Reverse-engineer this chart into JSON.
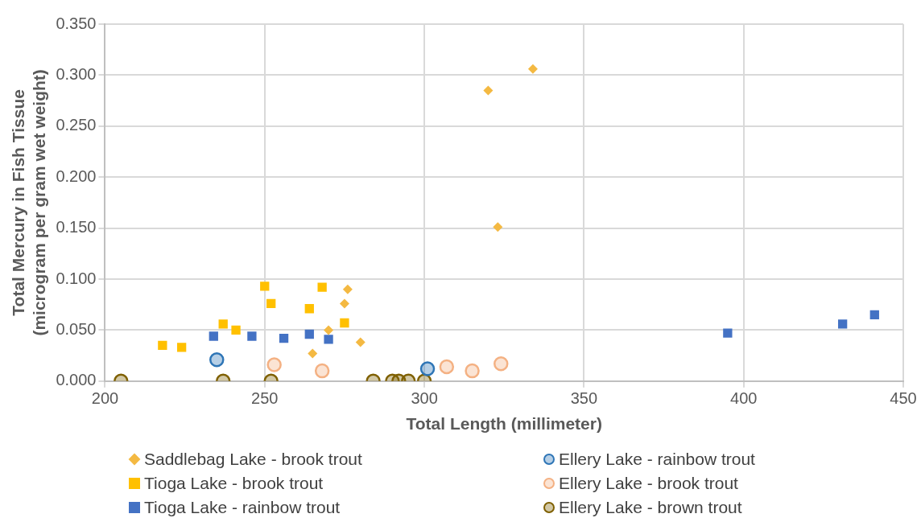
{
  "chart_data": {
    "type": "scatter",
    "xlabel": "Total Length (millimeter)",
    "ylabel": "Total Mercury in Fish Tissue\n(microgram per gram wet weight)",
    "xlim": [
      200,
      450
    ],
    "xticks": [
      200,
      250,
      300,
      350,
      400,
      450
    ],
    "ylim": [
      0,
      0.35
    ],
    "yticks": [
      {
        "value": 0,
        "label": "0.000"
      },
      {
        "value": 0.05,
        "label": "0.050"
      },
      {
        "value": 0.1,
        "label": "0.100"
      },
      {
        "value": 0.15,
        "label": "0.150"
      },
      {
        "value": 0.2,
        "label": "0.200"
      },
      {
        "value": 0.25,
        "label": "0.250"
      },
      {
        "value": 0.3,
        "label": "0.300"
      },
      {
        "value": 0.35,
        "label": "0.350"
      }
    ],
    "grid": true,
    "legend": "bottom",
    "series": [
      {
        "name": "Saddlebag Lake - brook trout",
        "color": "#f4b942",
        "marker": "diamond",
        "x": [
          320,
          334,
          323,
          276,
          275,
          270,
          265,
          280
        ],
        "values": [
          0.285,
          0.306,
          0.151,
          0.09,
          0.076,
          0.05,
          0.027,
          0.038
        ]
      },
      {
        "name": "Tioga Lake - brook trout",
        "color": "#ffc000",
        "marker": "square",
        "x": [
          218,
          224,
          237,
          241,
          250,
          252,
          264,
          268,
          275
        ],
        "values": [
          0.035,
          0.033,
          0.056,
          0.05,
          0.093,
          0.076,
          0.071,
          0.092,
          0.057
        ]
      },
      {
        "name": "Tioga Lake - rainbow trout",
        "color": "#4472c4",
        "marker": "square",
        "x": [
          234,
          246,
          256,
          264,
          270,
          395,
          431,
          441
        ],
        "values": [
          0.044,
          0.044,
          0.042,
          0.046,
          0.041,
          0.047,
          0.056,
          0.065
        ]
      },
      {
        "name": "Ellery Lake - rainbow trout",
        "color": "#2e75b6",
        "marker": "circle",
        "x": [
          235,
          301
        ],
        "values": [
          0.021,
          0.012
        ]
      },
      {
        "name": "Ellery Lake - brook trout",
        "color": "#f4b183",
        "marker": "circle",
        "x": [
          253,
          268,
          307,
          315,
          324
        ],
        "values": [
          0.016,
          0.01,
          0.014,
          0.01,
          0.017
        ]
      },
      {
        "name": "Ellery Lake - brown trout",
        "color": "#7f6000",
        "marker": "circle",
        "x": [
          205,
          237,
          252,
          284,
          290,
          292,
          295,
          300
        ],
        "values": [
          0,
          0,
          0,
          0,
          0,
          0,
          0,
          0
        ]
      }
    ]
  }
}
